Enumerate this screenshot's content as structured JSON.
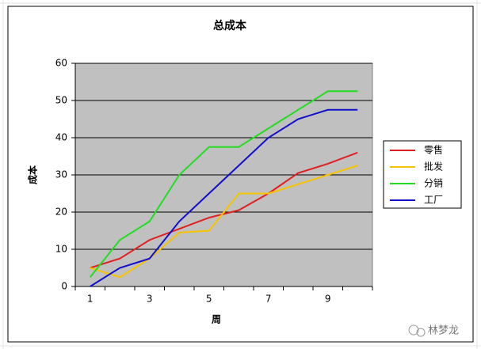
{
  "chart_data": {
    "type": "line",
    "title": "总成本",
    "x_label": "周",
    "y_label": "成本",
    "categories": [
      "1",
      null,
      "3",
      null,
      "5",
      null,
      "7",
      null,
      "9",
      null
    ],
    "series": [
      {
        "name": "零售",
        "color": "#e02020",
        "values": [
          5,
          7.5,
          12.5,
          15.5,
          18.5,
          20.5,
          25,
          30.5,
          33,
          36
        ]
      },
      {
        "name": "批发",
        "color": "#f5c400",
        "values": [
          5,
          2.5,
          7.5,
          14.5,
          15,
          25,
          25,
          27.5,
          30,
          32.5
        ]
      },
      {
        "name": "分销",
        "color": "#22dd22",
        "values": [
          2.5,
          12.5,
          17.5,
          30,
          37.5,
          37.5,
          42.5,
          47.5,
          52.5,
          52.5
        ]
      },
      {
        "name": "工厂",
        "color": "#1010cc",
        "values": [
          0,
          5,
          7.5,
          17.5,
          25,
          32.5,
          40,
          45,
          47.5,
          47.5
        ]
      }
    ],
    "ylim": [
      0,
      60
    ],
    "yticks": [
      0,
      10,
      20,
      30,
      40,
      50,
      60
    ],
    "grid": true,
    "legend": "right",
    "watermark": "林梦龙"
  }
}
